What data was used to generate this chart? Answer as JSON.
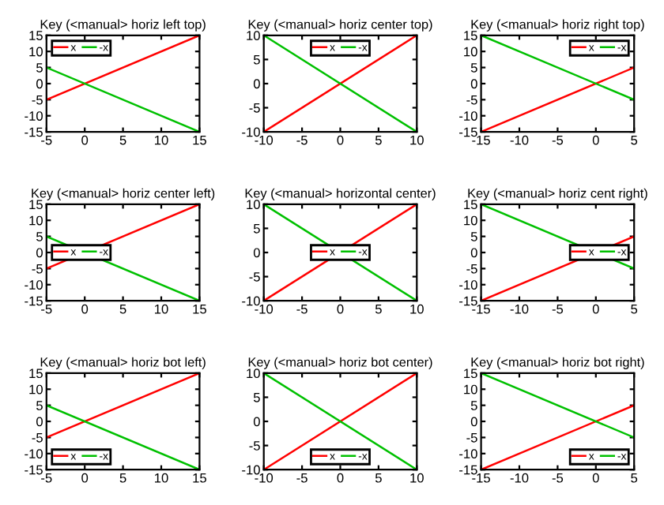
{
  "chart_data": [
    {
      "type": "line",
      "title": "Key (<manual> horiz left top)",
      "xlim": [
        -5,
        15
      ],
      "ylim": [
        -15,
        15
      ],
      "xticks": [
        -5,
        0,
        5,
        10,
        15
      ],
      "yticks": [
        -15,
        -10,
        -5,
        0,
        5,
        10,
        15
      ],
      "legend": "top left",
      "series": [
        {
          "name": "x",
          "color": "#ff0000",
          "x": [
            -5,
            15
          ],
          "values": [
            -5,
            15
          ]
        },
        {
          "name": "-x",
          "color": "#00c000",
          "x": [
            -5,
            15
          ],
          "values": [
            5,
            -15
          ]
        }
      ]
    },
    {
      "type": "line",
      "title": "Key (<manual> horiz center top)",
      "xlim": [
        -10,
        10
      ],
      "ylim": [
        -10,
        10
      ],
      "xticks": [
        -10,
        -5,
        0,
        5,
        10
      ],
      "yticks": [
        -10,
        -5,
        0,
        5,
        10
      ],
      "legend": "top",
      "series": [
        {
          "name": "x",
          "color": "#ff0000",
          "x": [
            -10,
            10
          ],
          "values": [
            -10,
            10
          ]
        },
        {
          "name": "-x",
          "color": "#00c000",
          "x": [
            -10,
            10
          ],
          "values": [
            10,
            -10
          ]
        }
      ]
    },
    {
      "type": "line",
      "title": "Key (<manual> horiz right top)",
      "xlim": [
        -15,
        5
      ],
      "ylim": [
        -15,
        15
      ],
      "xticks": [
        -15,
        -10,
        -5,
        0,
        5
      ],
      "yticks": [
        -15,
        -10,
        -5,
        0,
        5,
        10,
        15
      ],
      "legend": "top right",
      "series": [
        {
          "name": "x",
          "color": "#ff0000",
          "x": [
            -15,
            5
          ],
          "values": [
            -15,
            5
          ]
        },
        {
          "name": "-x",
          "color": "#00c000",
          "x": [
            -15,
            5
          ],
          "values": [
            15,
            -5
          ]
        }
      ]
    },
    {
      "type": "line",
      "title": "Key (<manual> horiz center left)",
      "xlim": [
        -5,
        15
      ],
      "ylim": [
        -15,
        15
      ],
      "xticks": [
        -5,
        0,
        5,
        10,
        15
      ],
      "yticks": [
        -15,
        -10,
        -5,
        0,
        5,
        10,
        15
      ],
      "legend": "left",
      "series": [
        {
          "name": "x",
          "color": "#ff0000",
          "x": [
            -5,
            15
          ],
          "values": [
            -5,
            15
          ]
        },
        {
          "name": "-x",
          "color": "#00c000",
          "x": [
            -5,
            15
          ],
          "values": [
            5,
            -15
          ]
        }
      ]
    },
    {
      "type": "line",
      "title": "Key (<manual> horizontal center)",
      "xlim": [
        -10,
        10
      ],
      "ylim": [
        -10,
        10
      ],
      "xticks": [
        -10,
        -5,
        0,
        5,
        10
      ],
      "yticks": [
        -10,
        -5,
        0,
        5,
        10
      ],
      "legend": "center",
      "series": [
        {
          "name": "x",
          "color": "#ff0000",
          "x": [
            -10,
            10
          ],
          "values": [
            -10,
            10
          ]
        },
        {
          "name": "-x",
          "color": "#00c000",
          "x": [
            -10,
            10
          ],
          "values": [
            10,
            -10
          ]
        }
      ]
    },
    {
      "type": "line",
      "title": "Key (<manual> horiz cent right)",
      "xlim": [
        -15,
        5
      ],
      "ylim": [
        -15,
        15
      ],
      "xticks": [
        -15,
        -10,
        -5,
        0,
        5
      ],
      "yticks": [
        -15,
        -10,
        -5,
        0,
        5,
        10,
        15
      ],
      "legend": "right",
      "series": [
        {
          "name": "x",
          "color": "#ff0000",
          "x": [
            -15,
            5
          ],
          "values": [
            -15,
            5
          ]
        },
        {
          "name": "-x",
          "color": "#00c000",
          "x": [
            -15,
            5
          ],
          "values": [
            15,
            -5
          ]
        }
      ]
    },
    {
      "type": "line",
      "title": "Key (<manual> horiz bot left)",
      "xlim": [
        -5,
        15
      ],
      "ylim": [
        -15,
        15
      ],
      "xticks": [
        -5,
        0,
        5,
        10,
        15
      ],
      "yticks": [
        -15,
        -10,
        -5,
        0,
        5,
        10,
        15
      ],
      "legend": "bottom left",
      "series": [
        {
          "name": "x",
          "color": "#ff0000",
          "x": [
            -5,
            15
          ],
          "values": [
            -5,
            15
          ]
        },
        {
          "name": "-x",
          "color": "#00c000",
          "x": [
            -5,
            15
          ],
          "values": [
            5,
            -15
          ]
        }
      ]
    },
    {
      "type": "line",
      "title": "Key (<manual> horiz bot center)",
      "xlim": [
        -10,
        10
      ],
      "ylim": [
        -10,
        10
      ],
      "xticks": [
        -10,
        -5,
        0,
        5,
        10
      ],
      "yticks": [
        -10,
        -5,
        0,
        5,
        10
      ],
      "legend": "bottom",
      "series": [
        {
          "name": "x",
          "color": "#ff0000",
          "x": [
            -10,
            10
          ],
          "values": [
            -10,
            10
          ]
        },
        {
          "name": "-x",
          "color": "#00c000",
          "x": [
            -10,
            10
          ],
          "values": [
            10,
            -10
          ]
        }
      ]
    },
    {
      "type": "line",
      "title": "Key (<manual> horiz bot right)",
      "xlim": [
        -15,
        5
      ],
      "ylim": [
        -15,
        15
      ],
      "xticks": [
        -15,
        -10,
        -5,
        0,
        5
      ],
      "yticks": [
        -15,
        -10,
        -5,
        0,
        5,
        10,
        15
      ],
      "legend": "bottom right",
      "series": [
        {
          "name": "x",
          "color": "#ff0000",
          "x": [
            -15,
            5
          ],
          "values": [
            -15,
            5
          ]
        },
        {
          "name": "-x",
          "color": "#00c000",
          "x": [
            -15,
            5
          ],
          "values": [
            15,
            -5
          ]
        }
      ]
    }
  ]
}
